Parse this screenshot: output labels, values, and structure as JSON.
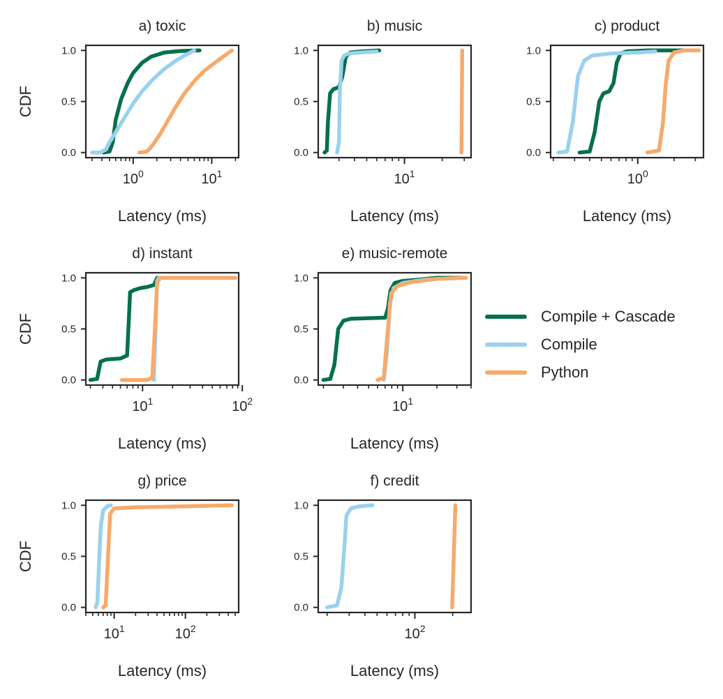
{
  "legend": {
    "items": [
      {
        "label": "Compile + Cascade",
        "color": "#07704c"
      },
      {
        "label": "Compile",
        "color": "#9ad1ee"
      },
      {
        "label": "Python",
        "color": "#f7aa6a"
      }
    ]
  },
  "chart_data": [
    {
      "type": "line",
      "title": "a) toxic",
      "xscale": "log",
      "xlabel": "Latency (ms)",
      "ylabel": "CDF",
      "xlim": [
        0.25,
        22
      ],
      "ylim": [
        -0.05,
        1.05
      ],
      "xticks_major": [
        {
          "value": 1,
          "label": "10^0"
        },
        {
          "value": 10,
          "label": "10^1"
        }
      ],
      "yticks": [
        0.0,
        0.5,
        1.0
      ],
      "ytick_labels": [
        "0.0",
        "0.5",
        "1.0"
      ],
      "series": [
        {
          "name": "Compile + Cascade",
          "points": [
            [
              0.42,
              0
            ],
            [
              0.5,
              0.01
            ],
            [
              0.55,
              0.1
            ],
            [
              0.6,
              0.32
            ],
            [
              0.7,
              0.52
            ],
            [
              0.85,
              0.68
            ],
            [
              1.0,
              0.78
            ],
            [
              1.3,
              0.88
            ],
            [
              1.7,
              0.94
            ],
            [
              2.5,
              0.98
            ],
            [
              4,
              0.995
            ],
            [
              7,
              1.0
            ]
          ]
        },
        {
          "name": "Compile",
          "points": [
            [
              0.3,
              0
            ],
            [
              0.38,
              0
            ],
            [
              0.45,
              0.03
            ],
            [
              0.5,
              0.1
            ],
            [
              0.6,
              0.2
            ],
            [
              0.8,
              0.36
            ],
            [
              1.0,
              0.48
            ],
            [
              1.3,
              0.6
            ],
            [
              1.8,
              0.72
            ],
            [
              2.5,
              0.82
            ],
            [
              3.5,
              0.9
            ],
            [
              4.5,
              0.95
            ],
            [
              6,
              1.0
            ]
          ]
        },
        {
          "name": "Python",
          "points": [
            [
              1.2,
              0
            ],
            [
              1.5,
              0.01
            ],
            [
              1.8,
              0.08
            ],
            [
              2.2,
              0.18
            ],
            [
              2.8,
              0.32
            ],
            [
              3.5,
              0.45
            ],
            [
              4.5,
              0.58
            ],
            [
              6,
              0.7
            ],
            [
              8,
              0.8
            ],
            [
              11,
              0.88
            ],
            [
              14,
              0.94
            ],
            [
              18,
              1.0
            ]
          ]
        }
      ]
    },
    {
      "type": "line",
      "title": "b) music",
      "xscale": "log",
      "xlabel": "Latency (ms)",
      "ylabel": "",
      "xlim": [
        2.05,
        34
      ],
      "ylim": [
        -0.05,
        1.05
      ],
      "xticks_major": [
        {
          "value": 10,
          "label": "10^1"
        }
      ],
      "yticks": [
        0.0,
        0.5,
        1.0
      ],
      "ytick_labels": [
        "0.0",
        "0.5",
        "1.0"
      ],
      "series": [
        {
          "name": "Compile + Cascade",
          "points": [
            [
              2.3,
              0
            ],
            [
              2.4,
              0.02
            ],
            [
              2.45,
              0.3
            ],
            [
              2.55,
              0.58
            ],
            [
              2.7,
              0.62
            ],
            [
              3.0,
              0.64
            ],
            [
              3.2,
              0.75
            ],
            [
              3.4,
              0.94
            ],
            [
              3.7,
              0.98
            ],
            [
              4.5,
              0.99
            ],
            [
              6.3,
              1.0
            ]
          ]
        },
        {
          "name": "Compile",
          "points": [
            [
              2.9,
              0
            ],
            [
              3.0,
              0.1
            ],
            [
              3.05,
              0.6
            ],
            [
              3.15,
              0.9
            ],
            [
              3.3,
              0.95
            ],
            [
              3.6,
              0.97
            ],
            [
              4.5,
              0.98
            ],
            [
              6,
              0.99
            ]
          ]
        },
        {
          "name": "Python",
          "points": [
            [
              28.5,
              0
            ],
            [
              28.7,
              0.5
            ],
            [
              28.9,
              1.0
            ]
          ]
        }
      ]
    },
    {
      "type": "line",
      "title": "c) product",
      "xscale": "log",
      "xlabel": "Latency (ms)",
      "ylabel": "",
      "xlim": [
        0.19,
        3.5
      ],
      "ylim": [
        -0.05,
        1.05
      ],
      "xticks_major": [
        {
          "value": 1,
          "label": "10^0"
        }
      ],
      "yticks": [
        0.0,
        0.5,
        1.0
      ],
      "ytick_labels": [
        "0.0",
        "0.5",
        "1.0"
      ],
      "series": [
        {
          "name": "Compile + Cascade",
          "points": [
            [
              0.33,
              0
            ],
            [
              0.4,
              0.01
            ],
            [
              0.44,
              0.2
            ],
            [
              0.48,
              0.5
            ],
            [
              0.52,
              0.58
            ],
            [
              0.58,
              0.6
            ],
            [
              0.63,
              0.68
            ],
            [
              0.67,
              0.88
            ],
            [
              0.72,
              0.97
            ],
            [
              0.8,
              0.99
            ],
            [
              1.2,
              1.0
            ],
            [
              3.2,
              1.0
            ]
          ]
        },
        {
          "name": "Compile",
          "points": [
            [
              0.22,
              0
            ],
            [
              0.26,
              0.01
            ],
            [
              0.29,
              0.3
            ],
            [
              0.32,
              0.75
            ],
            [
              0.36,
              0.9
            ],
            [
              0.42,
              0.95
            ],
            [
              0.6,
              0.97
            ],
            [
              1.0,
              0.98
            ],
            [
              1.4,
              0.99
            ]
          ]
        },
        {
          "name": "Python",
          "points": [
            [
              1.2,
              0
            ],
            [
              1.5,
              0.02
            ],
            [
              1.62,
              0.3
            ],
            [
              1.7,
              0.65
            ],
            [
              1.8,
              0.9
            ],
            [
              2.0,
              0.98
            ],
            [
              2.4,
              1.0
            ],
            [
              3.2,
              1.0
            ]
          ]
        }
      ]
    },
    {
      "type": "line",
      "title": "d) instant",
      "xscale": "log",
      "xlabel": "Latency (ms)",
      "ylabel": "CDF",
      "xlim": [
        2.7,
        92
      ],
      "ylim": [
        -0.05,
        1.05
      ],
      "xticks_major": [
        {
          "value": 10,
          "label": "10^1"
        },
        {
          "value": 100,
          "label": "10^2"
        }
      ],
      "yticks": [
        0.0,
        0.5,
        1.0
      ],
      "ytick_labels": [
        "0.0",
        "0.5",
        "1.0"
      ],
      "series": [
        {
          "name": "Compile + Cascade",
          "points": [
            [
              3.0,
              0
            ],
            [
              3.5,
              0.01
            ],
            [
              3.8,
              0.18
            ],
            [
              4.3,
              0.2
            ],
            [
              6.0,
              0.21
            ],
            [
              7.0,
              0.24
            ],
            [
              7.3,
              0.6
            ],
            [
              7.5,
              0.86
            ],
            [
              8.2,
              0.88
            ],
            [
              9.5,
              0.9
            ],
            [
              11,
              0.91
            ],
            [
              13,
              0.93
            ],
            [
              14,
              1.0
            ],
            [
              30,
              1.0
            ],
            [
              85,
              1.0
            ]
          ]
        },
        {
          "name": "Compile",
          "points": [
            [
              13,
              0
            ],
            [
              13.5,
              0.5
            ],
            [
              14,
              0.97
            ],
            [
              14.5,
              1.0
            ]
          ]
        },
        {
          "name": "Python",
          "points": [
            [
              6.2,
              0
            ],
            [
              11,
              0
            ],
            [
              12.5,
              0.02
            ],
            [
              13.3,
              0.5
            ],
            [
              14,
              0.95
            ],
            [
              15,
              1.0
            ],
            [
              30,
              1.0
            ],
            [
              85,
              1.0
            ]
          ]
        }
      ]
    },
    {
      "type": "line",
      "title": "e) music-remote",
      "xscale": "log",
      "xlabel": "Latency (ms)",
      "ylabel": "",
      "xlim": [
        1.8,
        40
      ],
      "ylim": [
        -0.05,
        1.05
      ],
      "xticks_major": [
        {
          "value": 10,
          "label": "10^1"
        }
      ],
      "yticks": [
        0.0,
        0.5,
        1.0
      ],
      "ytick_labels": [
        "0.0",
        "0.5",
        "1.0"
      ],
      "series": [
        {
          "name": "Compile + Cascade",
          "points": [
            [
              2.0,
              0
            ],
            [
              2.3,
              0.01
            ],
            [
              2.5,
              0.15
            ],
            [
              2.7,
              0.5
            ],
            [
              3.0,
              0.58
            ],
            [
              3.5,
              0.6
            ],
            [
              7.0,
              0.61
            ],
            [
              7.4,
              0.7
            ],
            [
              7.8,
              0.88
            ],
            [
              8.5,
              0.95
            ],
            [
              10,
              0.97
            ],
            [
              13,
              0.98
            ],
            [
              20,
              1.0
            ],
            [
              35,
              1.0
            ]
          ]
        },
        {
          "name": "Compile",
          "points": [
            [
              6.8,
              0
            ],
            [
              7.3,
              0.3
            ],
            [
              7.7,
              0.75
            ],
            [
              8.3,
              0.9
            ],
            [
              10,
              0.95
            ],
            [
              15,
              0.98
            ],
            [
              20,
              0.99
            ]
          ]
        },
        {
          "name": "Python",
          "points": [
            [
              6.0,
              0
            ],
            [
              6.8,
              0.02
            ],
            [
              7.4,
              0.5
            ],
            [
              7.9,
              0.85
            ],
            [
              9,
              0.92
            ],
            [
              12,
              0.96
            ],
            [
              20,
              0.99
            ],
            [
              36,
              1.0
            ]
          ]
        }
      ]
    },
    {
      "type": "line",
      "title": "g) price",
      "xscale": "log",
      "xlabel": "Latency (ms)",
      "ylabel": "CDF",
      "xlim": [
        4.0,
        560
      ],
      "ylim": [
        -0.05,
        1.05
      ],
      "xticks_major": [
        {
          "value": 10,
          "label": "10^1"
        },
        {
          "value": 100,
          "label": "10^2"
        }
      ],
      "yticks": [
        0.0,
        0.5,
        1.0
      ],
      "ytick_labels": [
        "0.0",
        "0.5",
        "1.0"
      ],
      "series": [
        {
          "name": "Compile + Cascade",
          "points": []
        },
        {
          "name": "Compile",
          "points": [
            [
              5.5,
              0
            ],
            [
              5.8,
              0.05
            ],
            [
              6.1,
              0.4
            ],
            [
              6.5,
              0.8
            ],
            [
              7.0,
              0.95
            ],
            [
              8,
              0.99
            ],
            [
              9,
              1.0
            ]
          ]
        },
        {
          "name": "Python",
          "points": [
            [
              7.0,
              0
            ],
            [
              7.6,
              0.02
            ],
            [
              8.2,
              0.5
            ],
            [
              8.8,
              0.92
            ],
            [
              10,
              0.97
            ],
            [
              20,
              0.98
            ],
            [
              100,
              0.99
            ],
            [
              450,
              1.0
            ]
          ]
        }
      ]
    },
    {
      "type": "line",
      "title": "f) credit",
      "xscale": "log",
      "xlabel": "Latency (ms)",
      "ylabel": "",
      "xlim": [
        17,
        280
      ],
      "ylim": [
        -0.05,
        1.05
      ],
      "xticks_major": [
        {
          "value": 100,
          "label": "10^2"
        }
      ],
      "yticks": [
        0.0,
        0.5,
        1.0
      ],
      "ytick_labels": [
        "0.0",
        "0.5",
        "1.0"
      ],
      "series": [
        {
          "name": "Compile + Cascade",
          "points": []
        },
        {
          "name": "Compile",
          "points": [
            [
              20,
              0
            ],
            [
              24,
              0.02
            ],
            [
              26,
              0.2
            ],
            [
              27.5,
              0.6
            ],
            [
              28.5,
              0.9
            ],
            [
              31,
              0.97
            ],
            [
              36,
              0.99
            ],
            [
              46,
              1.0
            ]
          ]
        },
        {
          "name": "Python",
          "points": [
            [
              198,
              0
            ],
            [
              204,
              0.5
            ],
            [
              210,
              1.0
            ]
          ]
        }
      ]
    }
  ]
}
